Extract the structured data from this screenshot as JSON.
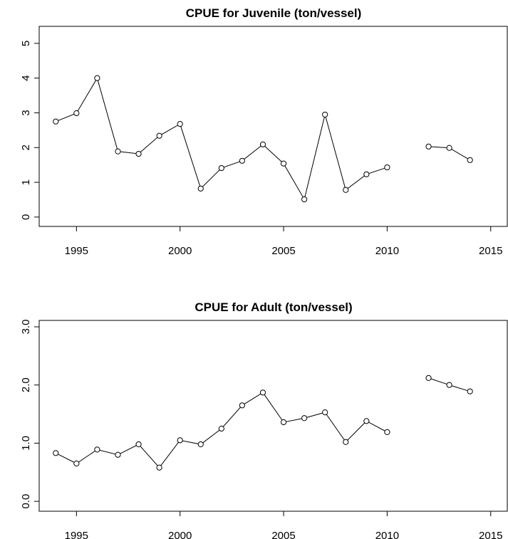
{
  "chart_data": [
    {
      "type": "line",
      "title": "CPUE for Juvenile (ton/vessel)",
      "x": [
        1994,
        1995,
        1996,
        1997,
        1998,
        1999,
        2000,
        2001,
        2002,
        2003,
        2004,
        2005,
        2006,
        2007,
        2008,
        2009,
        2010,
        2011,
        2012,
        2013,
        2014
      ],
      "values": [
        2.75,
        2.99,
        4.0,
        1.89,
        1.82,
        2.34,
        2.68,
        0.82,
        1.41,
        1.62,
        2.09,
        1.54,
        0.51,
        2.95,
        0.78,
        1.23,
        1.43,
        null,
        2.03,
        1.99,
        1.64
      ],
      "color": "#000000",
      "xlim": [
        1993.2,
        2015.8
      ],
      "xticks": [
        1995,
        2000,
        2005,
        2010,
        2015
      ],
      "ylim": [
        -0.27,
        5.49
      ],
      "yticks": [
        0,
        1,
        2,
        3,
        4,
        5
      ]
    },
    {
      "type": "line",
      "title": "CPUE for Adult (ton/vessel)",
      "x": [
        1994,
        1995,
        1996,
        1997,
        1998,
        1999,
        2000,
        2001,
        2002,
        2003,
        2004,
        2005,
        2006,
        2007,
        2008,
        2009,
        2010,
        2011,
        2012,
        2013,
        2014
      ],
      "values": [
        0.83,
        0.65,
        0.89,
        0.8,
        0.98,
        0.58,
        1.05,
        0.98,
        1.25,
        1.65,
        1.87,
        1.36,
        1.43,
        1.53,
        1.02,
        1.38,
        1.19,
        null,
        2.12,
        2.0,
        1.89
      ],
      "color": "#000000",
      "xlim": [
        1993.2,
        2015.8
      ],
      "xticks": [
        1995,
        2000,
        2005,
        2010,
        2015
      ],
      "ylim": [
        -0.17,
        3.11
      ],
      "yticks": [
        {
          "value": 0,
          "label": "0.0"
        },
        {
          "value": 1,
          "label": "1.0"
        },
        {
          "value": 2,
          "label": "2.0"
        },
        {
          "value": 3,
          "label": "3.0"
        }
      ]
    }
  ]
}
